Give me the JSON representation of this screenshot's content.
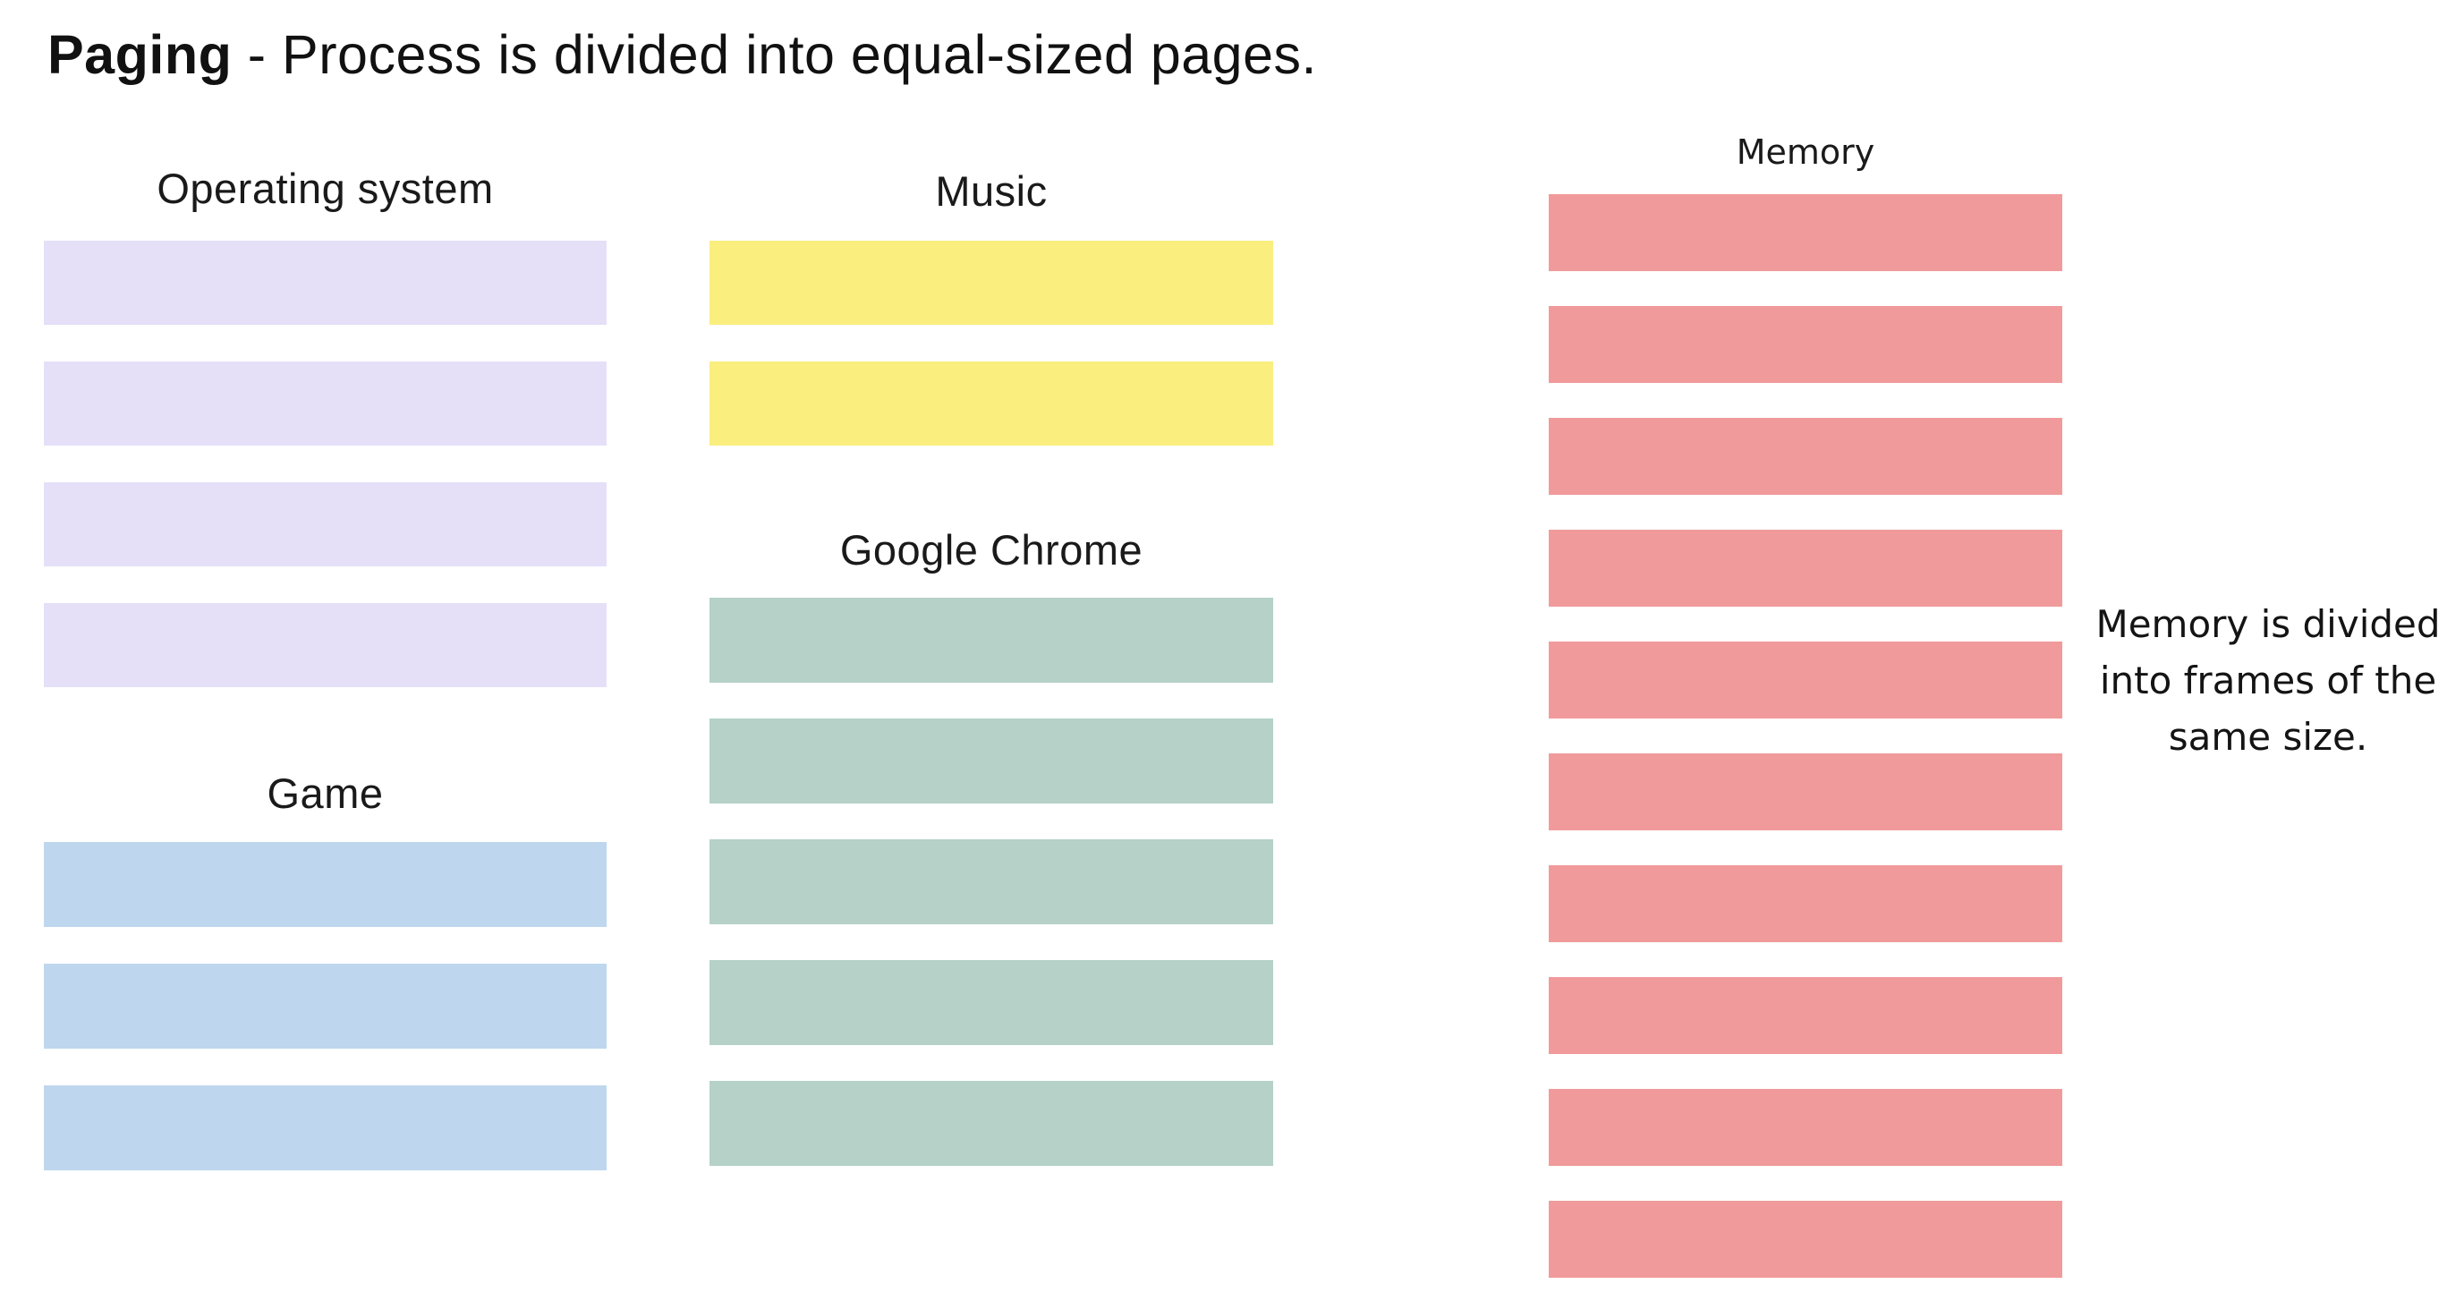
{
  "title": {
    "keyword": "Paging",
    "rest": " - Process is divided into equal-sized pages."
  },
  "colors": {
    "operating_system": "#E5E0F8",
    "game": "#BFD7EE",
    "music": "#FAEE7F",
    "google_chrome": "#B5D1C8",
    "memory": "#F19A9B",
    "background": "#FFFFFF",
    "text": "#141414"
  },
  "groups": [
    {
      "id": "operating-system",
      "label": "Operating system",
      "unit": "page",
      "blocks": 4,
      "color": "#E5E0F8"
    },
    {
      "id": "game",
      "label": "Game",
      "unit": "page",
      "blocks": 3,
      "color": "#BFD7EE"
    },
    {
      "id": "music",
      "label": "Music",
      "unit": "page",
      "blocks": 2,
      "color": "#FAEE7F"
    },
    {
      "id": "google-chrome",
      "label": "Google Chrome",
      "unit": "page",
      "blocks": 5,
      "color": "#B5D1C8"
    },
    {
      "id": "memory",
      "label": "Memory",
      "unit": "frame",
      "blocks": 10,
      "color": "#F19A9B"
    }
  ],
  "annotation": {
    "lines": [
      "Memory is divided",
      "into frames of the",
      "same size."
    ]
  }
}
